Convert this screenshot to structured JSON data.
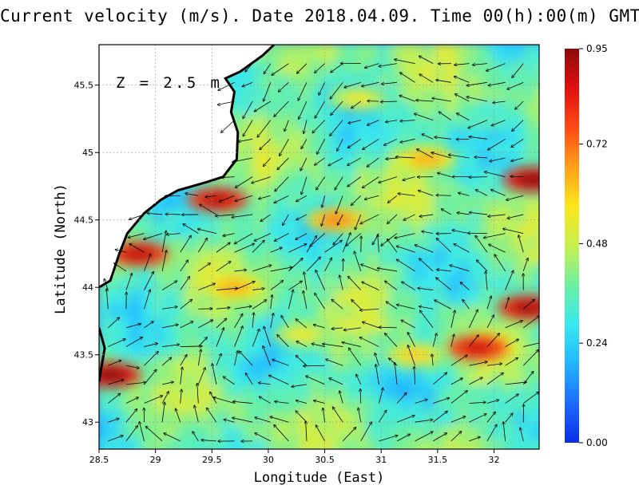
{
  "chart_data": {
    "type": "heatmap",
    "title": "Current velocity (m/s). Date 2018.04.09. Time 00(h):00(m) GMT",
    "xlabel": "Longitude (East)",
    "ylabel": "Latitude (North)",
    "depth_label": "Z = 2.5 m",
    "xlim": [
      28.5,
      32.4
    ],
    "ylim": [
      42.8,
      45.8
    ],
    "x_ticks": [
      "28.5",
      "29",
      "29.5",
      "30",
      "30.5",
      "31",
      "31.5",
      "32"
    ],
    "x_tick_values": [
      28.5,
      29,
      29.5,
      30,
      30.5,
      31,
      31.5,
      32
    ],
    "y_ticks": [
      "43",
      "43.5",
      "44",
      "44.5",
      "45",
      "45.5"
    ],
    "y_tick_values": [
      43,
      43.5,
      44,
      44.5,
      45,
      45.5
    ],
    "grid": true,
    "colorbar": {
      "min": 0.0,
      "max": 0.95,
      "tick_labels": [
        "0.00",
        "0.24",
        "0.48",
        "0.72",
        "0.95"
      ],
      "tick_values": [
        0.0,
        0.24,
        0.48,
        0.72,
        0.95
      ],
      "colors": [
        "#0a2ee6",
        "#1e6bff",
        "#22b5ff",
        "#38e8ef",
        "#6cf0a0",
        "#c8f050",
        "#fbe61a",
        "#ffa01a",
        "#ff4a14",
        "#e01010",
        "#8b0a0a"
      ]
    },
    "speed_hotspots": [
      {
        "lon": 29.55,
        "lat": 44.65,
        "speed": 0.8
      },
      {
        "lon": 28.85,
        "lat": 44.25,
        "speed": 0.8
      },
      {
        "lon": 28.6,
        "lat": 43.35,
        "speed": 0.85
      },
      {
        "lon": 31.85,
        "lat": 43.55,
        "speed": 0.78
      },
      {
        "lon": 32.3,
        "lat": 43.85,
        "speed": 0.82
      },
      {
        "lon": 32.35,
        "lat": 44.8,
        "speed": 0.85
      },
      {
        "lon": 31.4,
        "lat": 44.95,
        "speed": 0.55
      },
      {
        "lon": 30.6,
        "lat": 44.5,
        "speed": 0.6
      },
      {
        "lon": 29.7,
        "lat": 44.0,
        "speed": 0.55
      },
      {
        "lon": 30.3,
        "lat": 43.65,
        "speed": 0.45
      },
      {
        "lon": 31.3,
        "lat": 43.5,
        "speed": 0.5
      },
      {
        "lon": 30.8,
        "lat": 45.4,
        "speed": 0.45
      }
    ],
    "coastline": [
      [
        28.5,
        44.0
      ],
      [
        28.6,
        44.05
      ],
      [
        28.68,
        44.25
      ],
      [
        28.75,
        44.4
      ],
      [
        28.9,
        44.55
      ],
      [
        29.05,
        44.65
      ],
      [
        29.2,
        44.72
      ],
      [
        29.45,
        44.78
      ],
      [
        29.6,
        44.82
      ],
      [
        29.72,
        44.95
      ],
      [
        29.73,
        45.15
      ],
      [
        29.67,
        45.3
      ],
      [
        29.7,
        45.45
      ],
      [
        29.62,
        45.55
      ],
      [
        29.75,
        45.6
      ],
      [
        29.95,
        45.72
      ],
      [
        30.05,
        45.8
      ]
    ],
    "land_polygon": [
      [
        28.5,
        44.0
      ],
      [
        28.6,
        44.05
      ],
      [
        28.68,
        44.25
      ],
      [
        28.75,
        44.4
      ],
      [
        28.9,
        44.55
      ],
      [
        29.05,
        44.65
      ],
      [
        29.2,
        44.72
      ],
      [
        29.45,
        44.78
      ],
      [
        29.6,
        44.82
      ],
      [
        29.72,
        44.95
      ],
      [
        29.73,
        45.15
      ],
      [
        29.67,
        45.3
      ],
      [
        29.7,
        45.45
      ],
      [
        29.62,
        45.55
      ],
      [
        29.75,
        45.6
      ],
      [
        29.95,
        45.72
      ],
      [
        30.05,
        45.8
      ],
      [
        28.5,
        45.8
      ]
    ],
    "southern_coast": [
      [
        28.5,
        43.3
      ],
      [
        28.55,
        43.55
      ],
      [
        28.5,
        43.7
      ]
    ]
  }
}
